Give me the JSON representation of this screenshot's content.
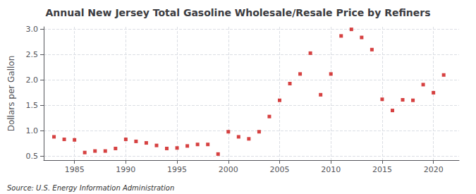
{
  "chart_data": {
    "type": "scatter",
    "title": "Annual New Jersey Total Gasoline Wholesale/Resale Price by Refiners",
    "ylabel": "Dollars per Gallon",
    "source": "Source: U.S. Energy Information Administration",
    "x": [
      1983,
      1984,
      1985,
      1986,
      1987,
      1988,
      1989,
      1990,
      1991,
      1992,
      1993,
      1994,
      1995,
      1996,
      1997,
      1998,
      1999,
      2000,
      2001,
      2002,
      2003,
      2004,
      2005,
      2006,
      2007,
      2008,
      2009,
      2010,
      2011,
      2012,
      2013,
      2014,
      2015,
      2016,
      2017,
      2018,
      2019,
      2020,
      2021
    ],
    "values": [
      0.88,
      0.83,
      0.82,
      0.57,
      0.6,
      0.6,
      0.65,
      0.83,
      0.79,
      0.76,
      0.71,
      0.65,
      0.66,
      0.7,
      0.73,
      0.73,
      0.54,
      0.98,
      0.88,
      0.84,
      0.98,
      1.28,
      1.6,
      1.93,
      2.12,
      2.53,
      1.71,
      2.12,
      2.87,
      3.0,
      2.84,
      2.6,
      1.62,
      1.4,
      1.61,
      1.6,
      1.91,
      1.75,
      2.1
    ],
    "color": "#cc1111",
    "marker": "square",
    "xlim": [
      1982,
      2022.5
    ],
    "ylim": [
      0.42,
      3.05
    ],
    "xticks": [
      1985,
      1990,
      1995,
      2000,
      2005,
      2010,
      2015,
      2020
    ],
    "yticks": [
      0.5,
      {
        "value": 1.0,
        "label": "1.0"
      },
      1.5,
      {
        "value": 2.0,
        "label": "2.0"
      },
      2.5,
      {
        "value": 3.0,
        "label": "3.0"
      }
    ],
    "grid": true
  }
}
